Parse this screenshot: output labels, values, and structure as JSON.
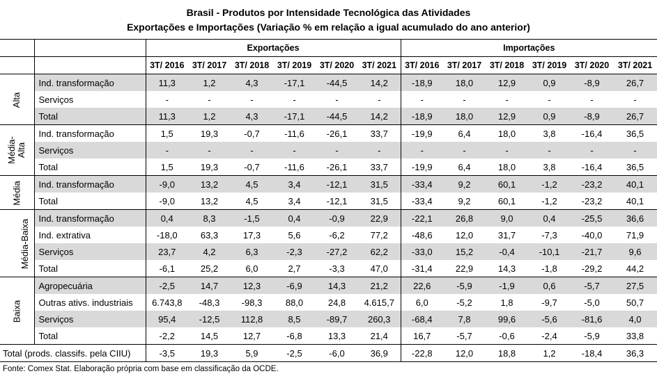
{
  "title": {
    "line1": "Brasil - Produtos por Intensidade Tecnológica das Atividades",
    "line2": "Exportações e Importações (Variação % em relação a igual acumulado do ano anterior)"
  },
  "headers": {
    "exports": "Exportações",
    "imports": "Importações",
    "years": [
      "3T/ 2016",
      "3T/ 2017",
      "3T/ 2018",
      "3T/ 2019",
      "3T/ 2020",
      "3T/ 2021"
    ]
  },
  "groups": [
    {
      "name": "Alta",
      "rows": [
        {
          "label": "Ind. transformação",
          "shade": true,
          "exp": [
            "11,3",
            "1,2",
            "4,3",
            "-17,1",
            "-44,5",
            "14,2"
          ],
          "imp": [
            "-18,9",
            "18,0",
            "12,9",
            "0,9",
            "-8,9",
            "26,7"
          ]
        },
        {
          "label": "Serviços",
          "shade": false,
          "exp": [
            "-",
            "-",
            "-",
            "-",
            "-",
            "-"
          ],
          "imp": [
            "-",
            "-",
            "-",
            "-",
            "-",
            "-"
          ]
        },
        {
          "label": "Total",
          "shade": true,
          "exp": [
            "11,3",
            "1,2",
            "4,3",
            "-17,1",
            "-44,5",
            "14,2"
          ],
          "imp": [
            "-18,9",
            "18,0",
            "12,9",
            "0,9",
            "-8,9",
            "26,7"
          ]
        }
      ]
    },
    {
      "name": "Média-Alta",
      "name_line1": "Média-",
      "name_line2": "Alta",
      "rows": [
        {
          "label": "Ind. transformação",
          "shade": false,
          "exp": [
            "1,5",
            "19,3",
            "-0,7",
            "-11,6",
            "-26,1",
            "33,7"
          ],
          "imp": [
            "-19,9",
            "6,4",
            "18,0",
            "3,8",
            "-16,4",
            "36,5"
          ]
        },
        {
          "label": "Serviços",
          "shade": true,
          "exp": [
            "-",
            "-",
            "-",
            "-",
            "-",
            "-"
          ],
          "imp": [
            "-",
            "-",
            "-",
            "-",
            "-",
            "-"
          ]
        },
        {
          "label": "Total",
          "shade": false,
          "exp": [
            "1,5",
            "19,3",
            "-0,7",
            "-11,6",
            "-26,1",
            "33,7"
          ],
          "imp": [
            "-19,9",
            "6,4",
            "18,0",
            "3,8",
            "-16,4",
            "36,5"
          ]
        }
      ]
    },
    {
      "name": "Média",
      "rows": [
        {
          "label": "Ind. transformação",
          "shade": true,
          "exp": [
            "-9,0",
            "13,2",
            "4,5",
            "3,4",
            "-12,1",
            "31,5"
          ],
          "imp": [
            "-33,4",
            "9,2",
            "60,1",
            "-1,2",
            "-23,2",
            "40,1"
          ]
        },
        {
          "label": "Total",
          "shade": false,
          "exp": [
            "-9,0",
            "13,2",
            "4,5",
            "3,4",
            "-12,1",
            "31,5"
          ],
          "imp": [
            "-33,4",
            "9,2",
            "60,1",
            "-1,2",
            "-23,2",
            "40,1"
          ]
        }
      ]
    },
    {
      "name": "Média-Baixa",
      "rows": [
        {
          "label": "Ind. transformação",
          "shade": true,
          "exp": [
            "0,4",
            "8,3",
            "-1,5",
            "0,4",
            "-0,9",
            "22,9"
          ],
          "imp": [
            "-22,1",
            "26,8",
            "9,0",
            "0,4",
            "-25,5",
            "36,6"
          ]
        },
        {
          "label": "Ind. extrativa",
          "shade": false,
          "exp": [
            "-18,0",
            "63,3",
            "17,3",
            "5,6",
            "-6,2",
            "77,2"
          ],
          "imp": [
            "-48,6",
            "12,0",
            "31,7",
            "-7,3",
            "-40,0",
            "71,9"
          ]
        },
        {
          "label": "Serviços",
          "shade": true,
          "exp": [
            "23,7",
            "4,2",
            "6,3",
            "-2,3",
            "-27,2",
            "62,2"
          ],
          "imp": [
            "-33,0",
            "15,2",
            "-0,4",
            "-10,1",
            "-21,7",
            "9,6"
          ]
        },
        {
          "label": "Total",
          "shade": false,
          "exp": [
            "-6,1",
            "25,2",
            "6,0",
            "2,7",
            "-3,3",
            "47,0"
          ],
          "imp": [
            "-31,4",
            "22,9",
            "14,3",
            "-1,8",
            "-29,2",
            "44,2"
          ]
        }
      ]
    },
    {
      "name": "Baixa",
      "rows": [
        {
          "label": "Agropecuária",
          "shade": true,
          "exp": [
            "-2,5",
            "14,7",
            "12,3",
            "-6,9",
            "14,3",
            "21,2"
          ],
          "imp": [
            "22,6",
            "-5,9",
            "-1,9",
            "0,6",
            "-5,7",
            "27,5"
          ]
        },
        {
          "label": "Outras ativs. industriais",
          "shade": false,
          "exp": [
            "6.743,8",
            "-48,3",
            "-98,3",
            "88,0",
            "24,8",
            "4.615,7"
          ],
          "imp": [
            "6,0",
            "-5,2",
            "1,8",
            "-9,7",
            "-5,0",
            "50,7"
          ]
        },
        {
          "label": "Serviços",
          "shade": true,
          "exp": [
            "95,4",
            "-12,5",
            "112,8",
            "8,5",
            "-89,7",
            "260,3"
          ],
          "imp": [
            "-68,4",
            "7,8",
            "99,6",
            "-5,6",
            "-81,6",
            "4,0"
          ]
        },
        {
          "label": "Total",
          "shade": false,
          "exp": [
            "-2,2",
            "14,5",
            "12,7",
            "-6,8",
            "13,3",
            "21,4"
          ],
          "imp": [
            "16,7",
            "-5,7",
            "-0,6",
            "-2,4",
            "-5,9",
            "33,8"
          ]
        }
      ]
    }
  ],
  "grand_total": {
    "label": "Total (prods. classifs. pela CIIU)",
    "exp": [
      "-3,5",
      "19,3",
      "5,9",
      "-2,5",
      "-6,0",
      "36,9"
    ],
    "imp": [
      "-22,8",
      "12,0",
      "18,8",
      "1,2",
      "-18,4",
      "36,3"
    ]
  },
  "source": "Fonte: Comex Stat. Elaboração própria com base em classificação da OCDE."
}
